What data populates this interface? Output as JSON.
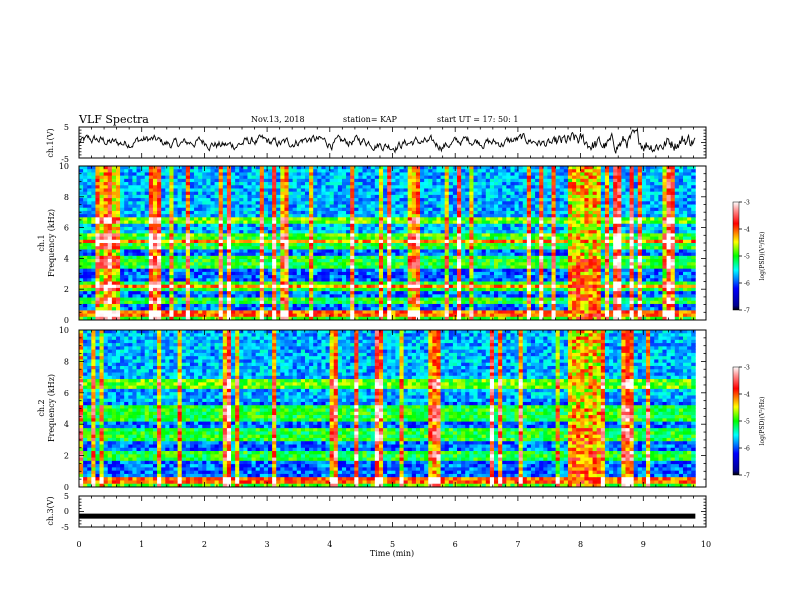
{
  "header": {
    "title": "VLF Spectra",
    "date": "Nov.13, 2018",
    "station": "station= KAP",
    "start": "start  UT =   17: 50: 1"
  },
  "chart_data": [
    {
      "type": "line",
      "name": "ch1-waveform",
      "ylabel": "ch.1(V)",
      "ylim": [
        -5,
        5
      ],
      "ytick_labels": [
        "5",
        "-5"
      ],
      "xlim": [
        0,
        10
      ],
      "x_extent": [
        0,
        9.83
      ],
      "description_level": "voltage trace oscillating roughly between -3 and +3 V"
    },
    {
      "type": "heatmap",
      "name": "ch1-spectrogram",
      "ylabel": "ch.1\nFrequency  (kHz)",
      "ylim": [
        0,
        10
      ],
      "ytick_labels": [
        "0",
        "2",
        "4",
        "6",
        "8",
        "10"
      ],
      "xlim": [
        0,
        10
      ],
      "x_extent": [
        0,
        9.83
      ],
      "colorbar": {
        "label": "log(PSD)(V²/Hz)",
        "range": [
          -7,
          -3
        ],
        "tick_labels": [
          "-3",
          "-4",
          "-5",
          "-6",
          "-7"
        ]
      },
      "features": {
        "broadband_burst_minutes": [
          7.8,
          8.35
        ],
        "emission_bands_khz": [
          0.4,
          1.2,
          2.1,
          2.3,
          3.6,
          4.0,
          4.9,
          5.3,
          6.5
        ]
      }
    },
    {
      "type": "heatmap",
      "name": "ch2-spectrogram",
      "ylabel": "ch.2\nFrequency  (kHz)",
      "ylim": [
        0,
        10
      ],
      "ytick_labels": [
        "0",
        "2",
        "4",
        "6",
        "8",
        "10"
      ],
      "xlim": [
        0,
        10
      ],
      "x_extent": [
        0,
        9.83
      ],
      "colorbar": {
        "label": "log(PSD)(V²/Hz)",
        "range": [
          -7,
          -3
        ],
        "tick_labels": [
          "-3",
          "-4",
          "-5",
          "-6",
          "-7"
        ]
      },
      "features": {
        "broadband_burst_minutes": [
          7.8,
          8.35
        ],
        "emission_bands_khz": [
          0.4,
          2.0,
          3.1,
          3.5,
          4.5,
          5.0,
          6.6
        ]
      }
    },
    {
      "type": "line",
      "name": "ch3-waveform",
      "ylabel": "ch.3(V)",
      "ylim": [
        -5,
        5
      ],
      "ytick_labels": [
        "5",
        "0",
        "-5"
      ],
      "xlim": [
        0,
        10
      ],
      "x_extent": [
        0,
        9.83
      ],
      "constant_value": -1.5,
      "xlabel": "Time  (min)",
      "xtick_labels": [
        "0",
        "1",
        "2",
        "3",
        "4",
        "5",
        "6",
        "7",
        "8",
        "9",
        "10"
      ]
    }
  ]
}
